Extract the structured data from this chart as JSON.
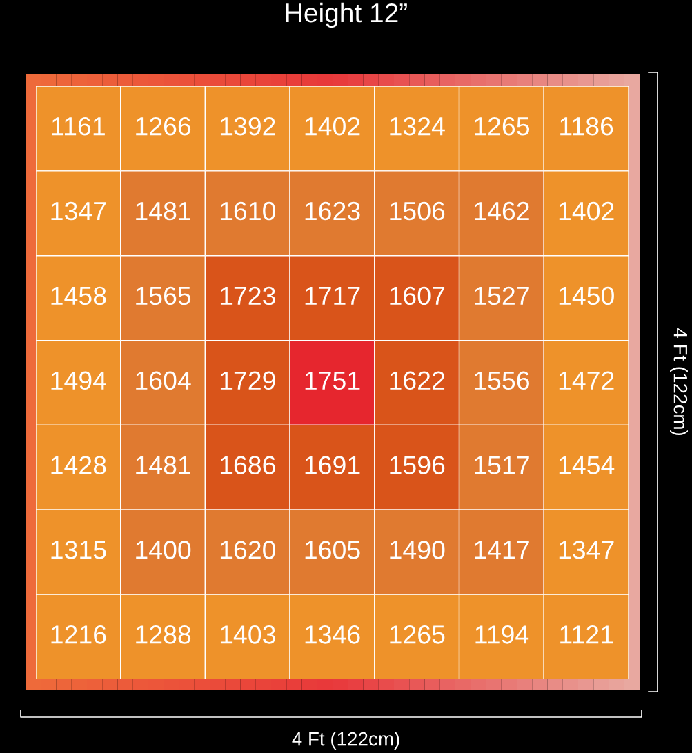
{
  "chart_data": {
    "type": "heatmap",
    "title": "Height 12”",
    "xlabel": "4 Ft (122cm)",
    "ylabel": "4 Ft (122cm)",
    "categories": [
      null,
      null,
      null,
      null,
      null,
      null,
      null
    ],
    "y_categories": [
      null,
      null,
      null,
      null,
      null,
      null,
      null
    ],
    "cells": [
      [
        1161,
        1266,
        1392,
        1402,
        1324,
        1265,
        1186
      ],
      [
        1347,
        1481,
        1610,
        1623,
        1506,
        1462,
        1402
      ],
      [
        1458,
        1565,
        1723,
        1717,
        1607,
        1527,
        1450
      ],
      [
        1494,
        1604,
        1729,
        1751,
        1622,
        1556,
        1472
      ],
      [
        1428,
        1481,
        1686,
        1691,
        1596,
        1517,
        1454
      ],
      [
        1315,
        1400,
        1620,
        1605,
        1490,
        1417,
        1347
      ],
      [
        1216,
        1288,
        1403,
        1346,
        1265,
        1194,
        1121
      ]
    ],
    "colors": [
      [
        "#ee922a",
        "#ee922a",
        "#ee922a",
        "#ee922a",
        "#ee922a",
        "#ee922a",
        "#ee922a"
      ],
      [
        "#ee922a",
        "#e07a30",
        "#e07a30",
        "#e07a30",
        "#e07a30",
        "#e07a30",
        "#ee922a"
      ],
      [
        "#ee922a",
        "#e07a30",
        "#d9541a",
        "#d9541a",
        "#d9541a",
        "#e07a30",
        "#ee922a"
      ],
      [
        "#ee922a",
        "#e07a30",
        "#d9541a",
        "#e6262e",
        "#d9541a",
        "#e07a30",
        "#ee922a"
      ],
      [
        "#ee922a",
        "#e07a30",
        "#d9541a",
        "#d9541a",
        "#d9541a",
        "#e07a30",
        "#ee922a"
      ],
      [
        "#ee922a",
        "#e07a30",
        "#e07a30",
        "#e07a30",
        "#e07a30",
        "#e07a30",
        "#ee922a"
      ],
      [
        "#ee922a",
        "#ee922a",
        "#ee922a",
        "#ee922a",
        "#ee922a",
        "#ee922a",
        "#ee922a"
      ]
    ],
    "data_labels": true
  }
}
